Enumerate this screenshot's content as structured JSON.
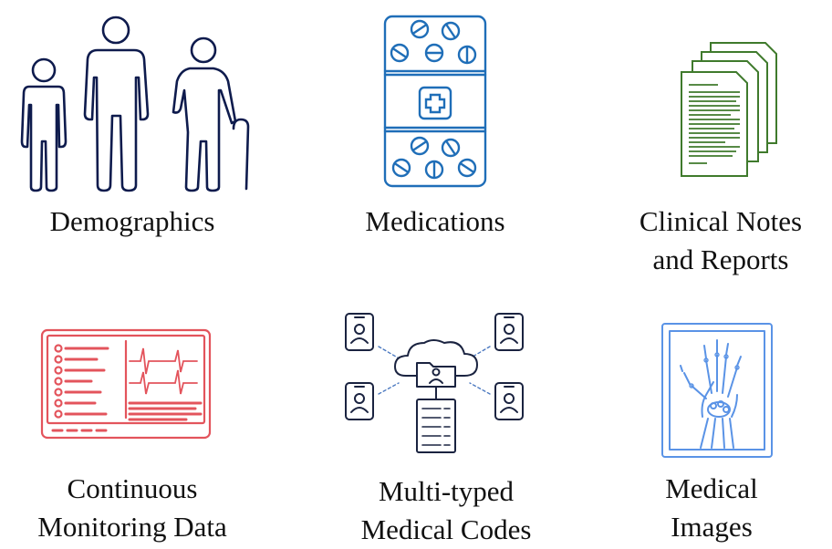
{
  "colors": {
    "demographics": "#0e1b4d",
    "medications": "#1f6eb8",
    "notes": "#3f7a2c",
    "monitoring": "#e3545c",
    "codes": "#1a2340",
    "images": "#5a93e6"
  },
  "tiles": [
    {
      "key": "demographics",
      "icon": "people-icon",
      "lines": [
        "Demographics"
      ]
    },
    {
      "key": "medications",
      "icon": "pill-box-icon",
      "lines": [
        "Medications"
      ]
    },
    {
      "key": "notes",
      "icon": "documents-icon",
      "lines": [
        "Clinical Notes",
        "and Reports"
      ]
    },
    {
      "key": "monitoring",
      "icon": "monitor-icon",
      "lines": [
        "Continuous",
        "Monitoring Data"
      ]
    },
    {
      "key": "codes",
      "icon": "cloud-network-icon",
      "lines": [
        "Multi-typed",
        "Medical Codes"
      ]
    },
    {
      "key": "images",
      "icon": "hand-xray-icon",
      "lines": [
        "Medical",
        "Images"
      ]
    }
  ]
}
